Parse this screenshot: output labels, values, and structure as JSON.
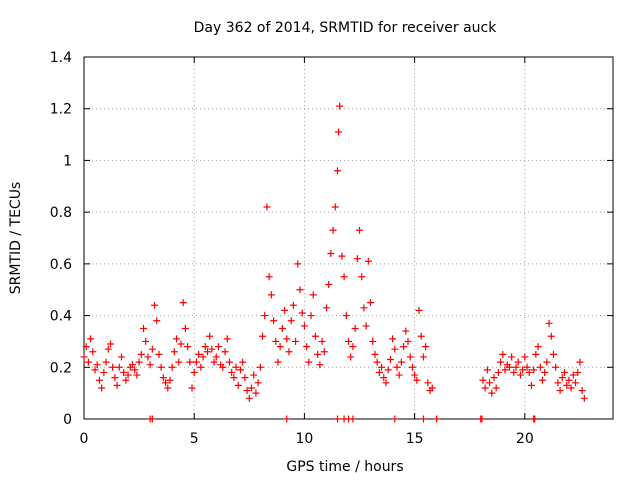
{
  "chart_data": {
    "type": "scatter",
    "title": "Day 362 of 2014, SRMTID for receiver auck",
    "xlabel": "GPS time / hours",
    "ylabel": "SRMTID / TECUs",
    "xlim": [
      0,
      24
    ],
    "ylim": [
      0,
      1.4
    ],
    "xticks": [
      0,
      5,
      10,
      15,
      20
    ],
    "xtick_labels": [
      "0",
      "5",
      "10",
      "15",
      "20"
    ],
    "yticks": [
      0,
      0.2,
      0.4,
      0.6,
      0.8,
      1.0,
      1.2,
      1.4
    ],
    "ytick_labels": [
      "0",
      "0.2",
      "0.4",
      "0.6",
      "0.8",
      "1",
      "1.2",
      "1.4"
    ],
    "grid": true,
    "marker": "+",
    "color": "#ff0000",
    "series": [
      {
        "name": "SRMTID",
        "points": [
          [
            0.0,
            0.24
          ],
          [
            0.1,
            0.28
          ],
          [
            0.2,
            0.22
          ],
          [
            0.3,
            0.31
          ],
          [
            0.4,
            0.26
          ],
          [
            0.5,
            0.19
          ],
          [
            0.6,
            0.21
          ],
          [
            0.7,
            0.15
          ],
          [
            0.8,
            0.12
          ],
          [
            0.9,
            0.18
          ],
          [
            1.0,
            0.22
          ],
          [
            1.1,
            0.27
          ],
          [
            1.2,
            0.29
          ],
          [
            1.3,
            0.2
          ],
          [
            1.4,
            0.16
          ],
          [
            1.5,
            0.13
          ],
          [
            1.6,
            0.2
          ],
          [
            1.7,
            0.24
          ],
          [
            1.8,
            0.18
          ],
          [
            1.9,
            0.15
          ],
          [
            2.0,
            0.17
          ],
          [
            2.1,
            0.2
          ],
          [
            2.2,
            0.21
          ],
          [
            2.3,
            0.19
          ],
          [
            2.4,
            0.17
          ],
          [
            2.5,
            0.22
          ],
          [
            2.6,
            0.25
          ],
          [
            2.7,
            0.35
          ],
          [
            2.8,
            0.3
          ],
          [
            2.9,
            0.24
          ],
          [
            3.0,
            0.21
          ],
          [
            3.1,
            0.27
          ],
          [
            3.2,
            0.44
          ],
          [
            3.3,
            0.38
          ],
          [
            3.4,
            0.25
          ],
          [
            3.5,
            0.2
          ],
          [
            3.6,
            0.16
          ],
          [
            3.7,
            0.14
          ],
          [
            3.8,
            0.12
          ],
          [
            3.9,
            0.15
          ],
          [
            4.0,
            0.2
          ],
          [
            4.1,
            0.26
          ],
          [
            4.2,
            0.31
          ],
          [
            4.3,
            0.22
          ],
          [
            4.4,
            0.29
          ],
          [
            4.5,
            0.45
          ],
          [
            4.6,
            0.35
          ],
          [
            4.7,
            0.28
          ],
          [
            4.8,
            0.22
          ],
          [
            4.9,
            0.12
          ],
          [
            5.0,
            0.18
          ],
          [
            5.1,
            0.22
          ],
          [
            5.2,
            0.25
          ],
          [
            5.3,
            0.2
          ],
          [
            5.4,
            0.24
          ],
          [
            5.5,
            0.28
          ],
          [
            5.6,
            0.26
          ],
          [
            5.7,
            0.32
          ],
          [
            5.8,
            0.27
          ],
          [
            5.9,
            0.22
          ],
          [
            6.0,
            0.24
          ],
          [
            6.1,
            0.28
          ],
          [
            6.2,
            0.21
          ],
          [
            6.3,
            0.2
          ],
          [
            6.4,
            0.26
          ],
          [
            6.5,
            0.31
          ],
          [
            6.6,
            0.22
          ],
          [
            6.7,
            0.18
          ],
          [
            6.8,
            0.16
          ],
          [
            6.9,
            0.2
          ],
          [
            7.0,
            0.13
          ],
          [
            7.1,
            0.19
          ],
          [
            7.2,
            0.22
          ],
          [
            7.3,
            0.16
          ],
          [
            7.4,
            0.11
          ],
          [
            7.5,
            0.08
          ],
          [
            7.6,
            0.12
          ],
          [
            7.7,
            0.17
          ],
          [
            7.8,
            0.1
          ],
          [
            7.9,
            0.14
          ],
          [
            8.0,
            0.2
          ],
          [
            8.1,
            0.32
          ],
          [
            8.2,
            0.4
          ],
          [
            8.3,
            0.82
          ],
          [
            8.4,
            0.55
          ],
          [
            8.5,
            0.48
          ],
          [
            8.6,
            0.38
          ],
          [
            8.7,
            0.3
          ],
          [
            8.8,
            0.22
          ],
          [
            8.9,
            0.28
          ],
          [
            9.0,
            0.35
          ],
          [
            9.1,
            0.42
          ],
          [
            9.2,
            0.31
          ],
          [
            9.3,
            0.26
          ],
          [
            9.4,
            0.38
          ],
          [
            9.5,
            0.44
          ],
          [
            9.6,
            0.3
          ],
          [
            9.7,
            0.6
          ],
          [
            9.8,
            0.5
          ],
          [
            9.9,
            0.41
          ],
          [
            10.0,
            0.36
          ],
          [
            10.1,
            0.28
          ],
          [
            10.2,
            0.22
          ],
          [
            10.3,
            0.4
          ],
          [
            10.4,
            0.48
          ],
          [
            10.5,
            0.32
          ],
          [
            10.6,
            0.25
          ],
          [
            10.7,
            0.21
          ],
          [
            10.8,
            0.3
          ],
          [
            10.9,
            0.26
          ],
          [
            11.0,
            0.43
          ],
          [
            11.1,
            0.52
          ],
          [
            11.2,
            0.64
          ],
          [
            11.3,
            0.73
          ],
          [
            11.4,
            0.82
          ],
          [
            11.5,
            0.96
          ],
          [
            11.55,
            1.11
          ],
          [
            11.6,
            1.21
          ],
          [
            11.7,
            0.63
          ],
          [
            11.8,
            0.55
          ],
          [
            11.9,
            0.4
          ],
          [
            12.0,
            0.3
          ],
          [
            12.1,
            0.24
          ],
          [
            12.2,
            0.28
          ],
          [
            12.3,
            0.35
          ],
          [
            12.4,
            0.62
          ],
          [
            12.5,
            0.73
          ],
          [
            12.6,
            0.55
          ],
          [
            12.7,
            0.43
          ],
          [
            12.8,
            0.36
          ],
          [
            12.9,
            0.61
          ],
          [
            13.0,
            0.45
          ],
          [
            13.1,
            0.3
          ],
          [
            13.2,
            0.25
          ],
          [
            13.3,
            0.22
          ],
          [
            13.4,
            0.18
          ],
          [
            13.5,
            0.2
          ],
          [
            13.6,
            0.16
          ],
          [
            13.7,
            0.14
          ],
          [
            13.8,
            0.19
          ],
          [
            13.9,
            0.23
          ],
          [
            14.0,
            0.31
          ],
          [
            14.1,
            0.27
          ],
          [
            14.2,
            0.2
          ],
          [
            14.3,
            0.17
          ],
          [
            14.4,
            0.22
          ],
          [
            14.5,
            0.28
          ],
          [
            14.6,
            0.34
          ],
          [
            14.7,
            0.3
          ],
          [
            14.8,
            0.24
          ],
          [
            14.9,
            0.2
          ],
          [
            15.0,
            0.17
          ],
          [
            15.1,
            0.15
          ],
          [
            15.2,
            0.42
          ],
          [
            15.3,
            0.32
          ],
          [
            15.4,
            0.24
          ],
          [
            15.5,
            0.28
          ],
          [
            15.6,
            0.14
          ],
          [
            15.7,
            0.11
          ],
          [
            15.8,
            0.12
          ],
          [
            18.1,
            0.15
          ],
          [
            18.2,
            0.12
          ],
          [
            18.3,
            0.19
          ],
          [
            18.4,
            0.14
          ],
          [
            18.5,
            0.1
          ],
          [
            18.6,
            0.16
          ],
          [
            18.7,
            0.12
          ],
          [
            18.8,
            0.18
          ],
          [
            18.9,
            0.22
          ],
          [
            19.0,
            0.25
          ],
          [
            19.1,
            0.19
          ],
          [
            19.2,
            0.21
          ],
          [
            19.3,
            0.2
          ],
          [
            19.4,
            0.24
          ],
          [
            19.5,
            0.18
          ],
          [
            19.6,
            0.2
          ],
          [
            19.7,
            0.22
          ],
          [
            19.8,
            0.17
          ],
          [
            19.9,
            0.19
          ],
          [
            20.0,
            0.24
          ],
          [
            20.1,
            0.2
          ],
          [
            20.2,
            0.18
          ],
          [
            20.3,
            0.13
          ],
          [
            20.4,
            0.19
          ],
          [
            20.5,
            0.25
          ],
          [
            20.6,
            0.28
          ],
          [
            20.7,
            0.2
          ],
          [
            20.8,
            0.15
          ],
          [
            20.9,
            0.18
          ],
          [
            21.0,
            0.22
          ],
          [
            21.1,
            0.37
          ],
          [
            21.2,
            0.32
          ],
          [
            21.3,
            0.25
          ],
          [
            21.4,
            0.2
          ],
          [
            21.5,
            0.14
          ],
          [
            21.6,
            0.11
          ],
          [
            21.7,
            0.16
          ],
          [
            21.8,
            0.18
          ],
          [
            21.9,
            0.13
          ],
          [
            22.0,
            0.15
          ],
          [
            22.1,
            0.12
          ],
          [
            22.2,
            0.17
          ],
          [
            22.3,
            0.14
          ],
          [
            22.4,
            0.18
          ],
          [
            22.5,
            0.22
          ],
          [
            22.6,
            0.11
          ],
          [
            22.7,
            0.08
          ]
        ]
      }
    ],
    "zero_markers_x": [
      3.0,
      3.1,
      9.2,
      11.5,
      11.8,
      12.0,
      12.2,
      14.1,
      15.4,
      16.0,
      18.0,
      18.05,
      20.4,
      20.45
    ]
  }
}
